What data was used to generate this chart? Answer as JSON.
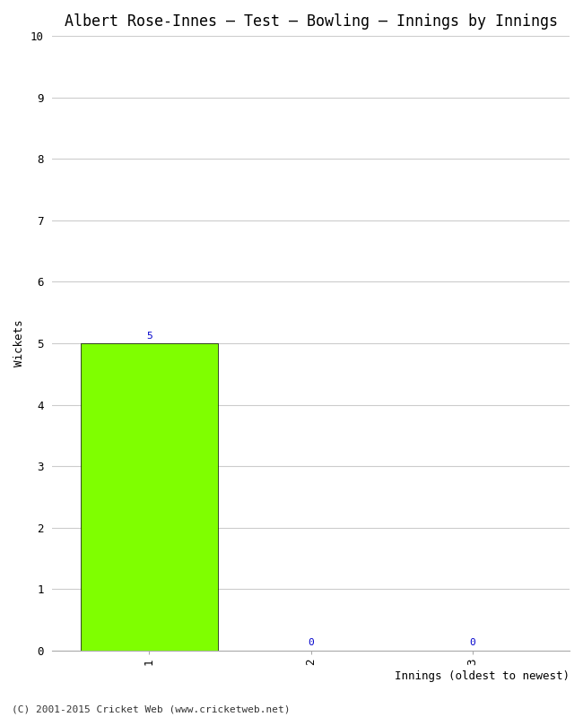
{
  "title": "Albert Rose-Innes – Test – Bowling – Innings by Innings",
  "xlabel": "Innings (oldest to newest)",
  "ylabel": "Wickets",
  "categories": [
    1,
    2,
    3
  ],
  "values": [
    5,
    0,
    0
  ],
  "bar_color": "#7fff00",
  "bar_edge_color": "#000000",
  "ylim": [
    0,
    10
  ],
  "yticks": [
    0,
    1,
    2,
    3,
    4,
    5,
    6,
    7,
    8,
    9,
    10
  ],
  "xticks": [
    1,
    2,
    3
  ],
  "background_color": "#ffffff",
  "grid_color": "#cccccc",
  "label_color": "#0000cc",
  "copyright": "(C) 2001-2015 Cricket Web (www.cricketweb.net)",
  "title_fontsize": 12,
  "axis_label_fontsize": 9,
  "tick_fontsize": 9,
  "bar_label_fontsize": 8,
  "copyright_fontsize": 8,
  "bar_width": 0.85
}
